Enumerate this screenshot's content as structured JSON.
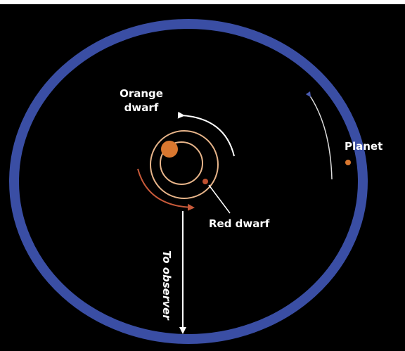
{
  "labels": [
    {
      "lines": [
        "Orange",
        "dwarf"
      ]
    },
    {
      "lines": [
        "Planet"
      ]
    },
    {
      "lines": [
        "Red dwarf"
      ]
    },
    {
      "lines": [
        "To observer"
      ]
    }
  ]
}
